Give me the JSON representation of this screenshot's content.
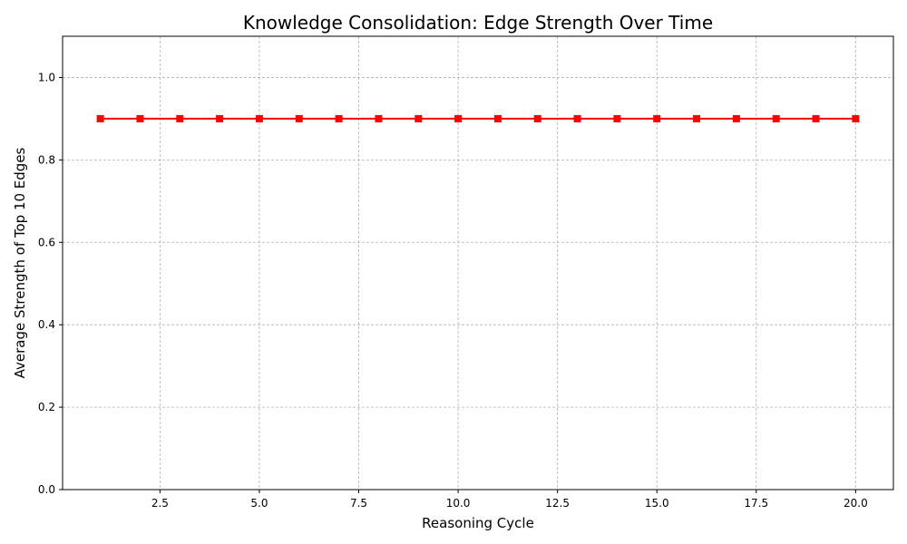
{
  "chart_data": {
    "type": "line",
    "title": "Knowledge Consolidation: Edge Strength Over Time",
    "xlabel": "Reasoning Cycle",
    "ylabel": "Average Strength of Top 10 Edges",
    "xlim": [
      0.05,
      20.95
    ],
    "ylim": [
      0,
      1.1
    ],
    "xticks": [
      2.5,
      5.0,
      7.5,
      10.0,
      12.5,
      15.0,
      17.5,
      20.0
    ],
    "xtick_labels": [
      "2.5",
      "5.0",
      "7.5",
      "10.0",
      "12.5",
      "15.0",
      "17.5",
      "20.0"
    ],
    "yticks": [
      0.0,
      0.2,
      0.4,
      0.6,
      0.8,
      1.0
    ],
    "ytick_labels": [
      "0.0",
      "0.2",
      "0.4",
      "0.6",
      "0.8",
      "1.0"
    ],
    "grid": true,
    "series": [
      {
        "color": "#ff0000",
        "marker": "square",
        "x": [
          1,
          2,
          3,
          4,
          5,
          6,
          7,
          8,
          9,
          10,
          11,
          12,
          13,
          14,
          15,
          16,
          17,
          18,
          19,
          20
        ],
        "y": [
          0.9,
          0.9,
          0.9,
          0.9,
          0.9,
          0.9,
          0.9,
          0.9,
          0.9,
          0.9,
          0.9,
          0.9,
          0.9,
          0.9,
          0.9,
          0.9,
          0.9,
          0.9,
          0.9,
          0.9
        ]
      }
    ]
  }
}
